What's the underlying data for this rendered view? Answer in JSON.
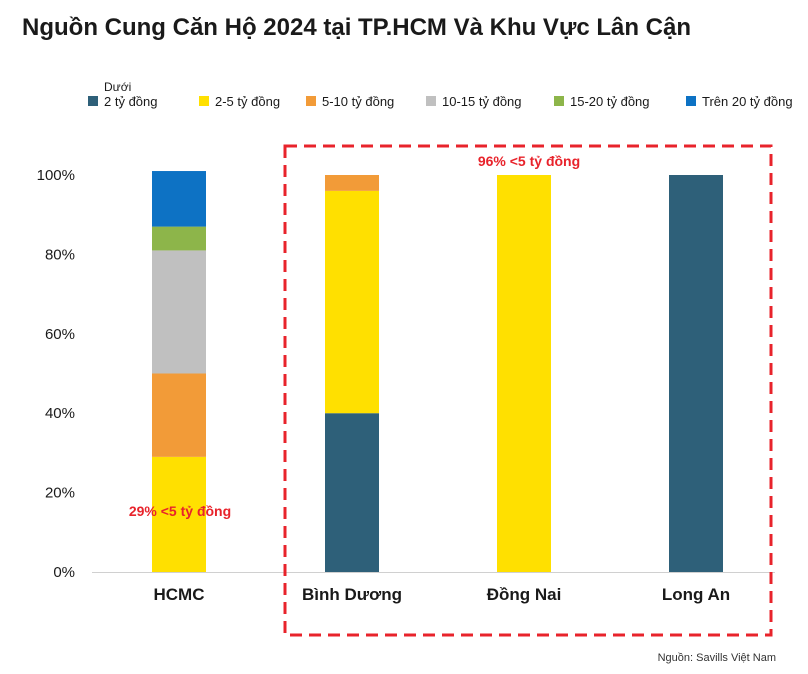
{
  "title": "Nguồn Cung Căn Hộ 2024 tại TP.HCM Và Khu Vực Lân Cận",
  "legend_prefix": "Dưới",
  "source": "Nguồn: Savills Việt Nam",
  "colors": {
    "highlight_box": "#e8232b",
    "annotation": "#e8232b"
  },
  "chart_data": {
    "type": "bar",
    "stacked": true,
    "categories": [
      "HCMC",
      "Bình Dương",
      "Đồng Nai",
      "Long An"
    ],
    "series": [
      {
        "name": "2 tỷ đồng",
        "color": "#2e6079",
        "values": [
          0,
          40,
          0,
          100
        ]
      },
      {
        "name": "2-5 tỷ đồng",
        "color": "#ffe000",
        "values": [
          29,
          56,
          100,
          0
        ]
      },
      {
        "name": "5-10 tỷ đồng",
        "color": "#f29b38",
        "values": [
          21,
          4,
          0,
          0
        ]
      },
      {
        "name": "10-15 tỷ đồng",
        "color": "#c0c0c0",
        "values": [
          31,
          0,
          0,
          0
        ]
      },
      {
        "name": "15-20 tỷ đồng",
        "color": "#8db54a",
        "values": [
          6,
          0,
          0,
          0
        ]
      },
      {
        "name": "Trên 20 tỷ đồng",
        "color": "#0d72c4",
        "values": [
          14,
          0,
          0,
          0
        ]
      }
    ],
    "yticks": [
      "0%",
      "20%",
      "40%",
      "60%",
      "80%",
      "100%"
    ],
    "ylim": [
      0,
      100
    ],
    "xlabel": "",
    "ylabel": "",
    "annotations": [
      {
        "text": "29% <5 tỷ đồng",
        "category": "HCMC"
      },
      {
        "text": "96% <5 tỷ đồng",
        "category": "Đồng Nai"
      }
    ],
    "highlight_categories": [
      "Bình Dương",
      "Đồng Nai",
      "Long An"
    ]
  }
}
